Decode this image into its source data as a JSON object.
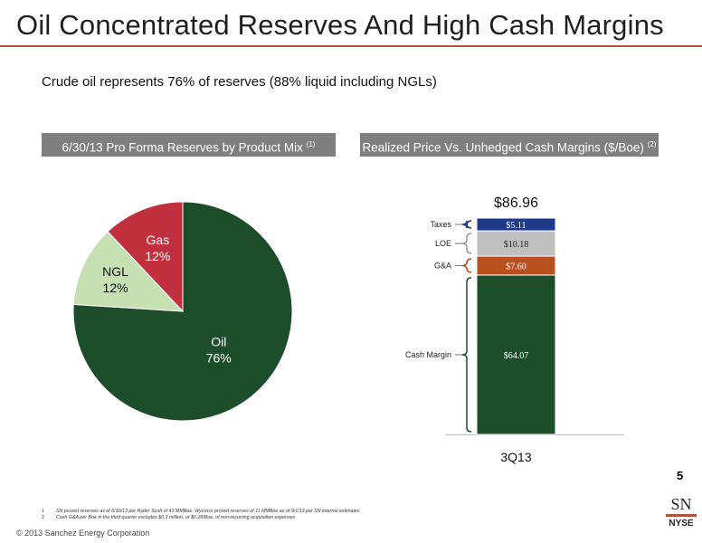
{
  "slide": {
    "title": "Oil Concentrated Reserves And High Cash Margins",
    "subtitle": "Crude oil represents 76% of reserves (88% liquid including NGLs)",
    "page_number": "5",
    "logo": {
      "top": "SN",
      "bottom": "NYSE"
    },
    "copyright": "© 2013 Sanchez Energy Corporation",
    "footnotes": [
      {
        "num": "1",
        "text": "SN proved reserves as of 6/30/13 per Ryder Scott of 43 MMBoe. Wycross proved reserves of 11 MMBoe as of 9/1/13 per SN internal estimates"
      },
      {
        "num": "2",
        "text": "Cash G&A per Boe in the third quarter excludes $0.3 million, or $0.28/Boe, of non-recurring acquisition expenses"
      }
    ]
  },
  "panels": {
    "left_header": "6/30/13 Pro Forma Reserves by Product Mix",
    "left_header_sup": "(1)",
    "right_header": "Realized Price Vs. Unhedged Cash Margins ($/Boe)",
    "right_header_sup": "(2)"
  },
  "chart_data": [
    {
      "type": "pie",
      "title": "6/30/13 Pro Forma Reserves by Product Mix",
      "slices": [
        {
          "name": "Oil",
          "value": 76,
          "label": "76%",
          "color": "#1e4d2b"
        },
        {
          "name": "NGL",
          "value": 12,
          "label": "12%",
          "color": "#c6e0b4"
        },
        {
          "name": "Gas",
          "value": 12,
          "label": "12%",
          "color": "#c0303e"
        }
      ]
    },
    {
      "type": "bar",
      "stacked": true,
      "title": "Realized Price Vs. Unhedged Cash Margins ($/Boe)",
      "categories": [
        "3Q13"
      ],
      "total_label": "$86.96",
      "total": 86.96,
      "ylim": [
        0,
        86.96
      ],
      "series": [
        {
          "name": "Cash Margin",
          "values": [
            64.07
          ],
          "label": "$64.07",
          "color": "#1e4d2b"
        },
        {
          "name": "G&A",
          "values": [
            7.6
          ],
          "label": "$7.60",
          "color": "#b8501f"
        },
        {
          "name": "LOE",
          "values": [
            10.18
          ],
          "label": "$10.18",
          "color": "#bfbfbf"
        },
        {
          "name": "Taxes",
          "values": [
            5.11
          ],
          "label": "$5.11",
          "color": "#203a8a"
        }
      ]
    }
  ]
}
